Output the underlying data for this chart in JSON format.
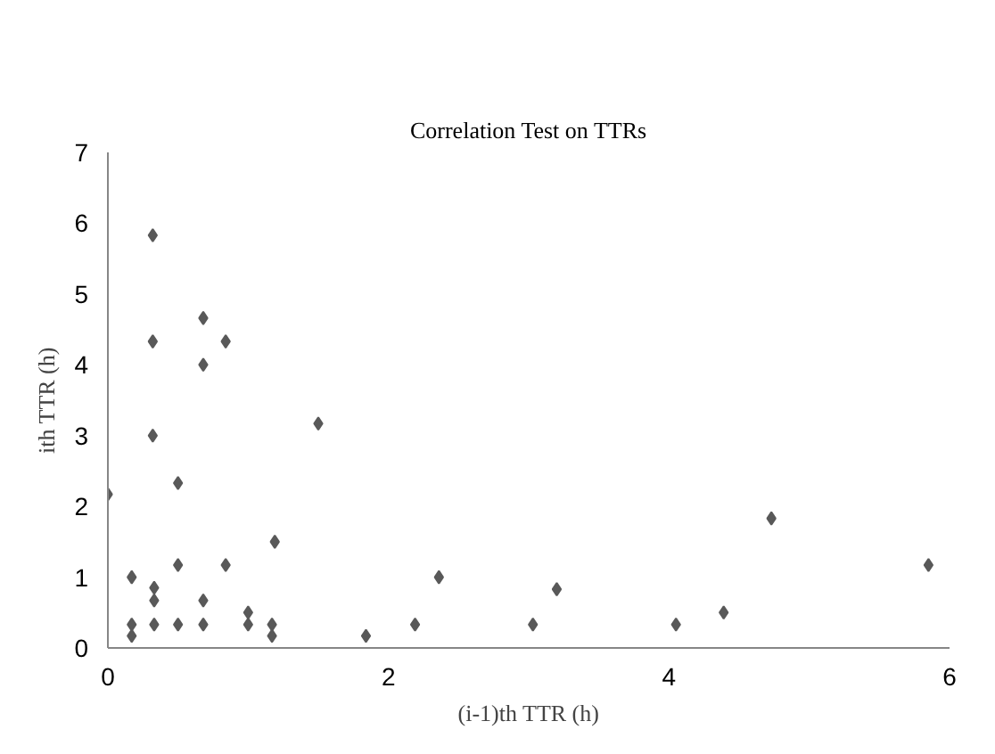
{
  "chart_data": {
    "type": "scatter",
    "title": "Correlation Test on TTRs",
    "xlabel": "(i-1)th TTR (h)",
    "ylabel": "ith TTR (h)",
    "x": [
      0,
      0.32,
      0.32,
      0.32,
      0.68,
      0.68,
      0.84,
      0.5,
      0.17,
      0.33,
      0.33,
      0.5,
      0.84,
      1.19,
      0.68,
      0.17,
      0.17,
      0.33,
      0.5,
      0.68,
      1.0,
      1.0,
      1.17,
      1.17,
      1.5,
      1.84,
      2.19,
      2.36,
      3.03,
      3.2,
      4.05,
      4.39,
      4.73,
      5.85
    ],
    "series": [
      {
        "color": "#595959",
        "values": [
          2.17,
          5.83,
          4.33,
          3.0,
          4.66,
          4.0,
          4.33,
          2.33,
          1.0,
          0.85,
          0.67,
          1.17,
          1.17,
          1.5,
          0.67,
          0.33,
          0.17,
          0.33,
          0.33,
          0.33,
          0.5,
          0.33,
          0.33,
          0.17,
          3.17,
          0.17,
          0.33,
          1.0,
          0.33,
          0.83,
          0.33,
          0.5,
          1.83,
          1.17
        ]
      }
    ],
    "xlim": [
      0,
      6
    ],
    "ylim": [
      0,
      7
    ],
    "xticks": [
      0,
      2,
      4,
      6
    ],
    "yticks": [
      0,
      1,
      2,
      3,
      4,
      5,
      6,
      7
    ],
    "marker": "diamond"
  }
}
